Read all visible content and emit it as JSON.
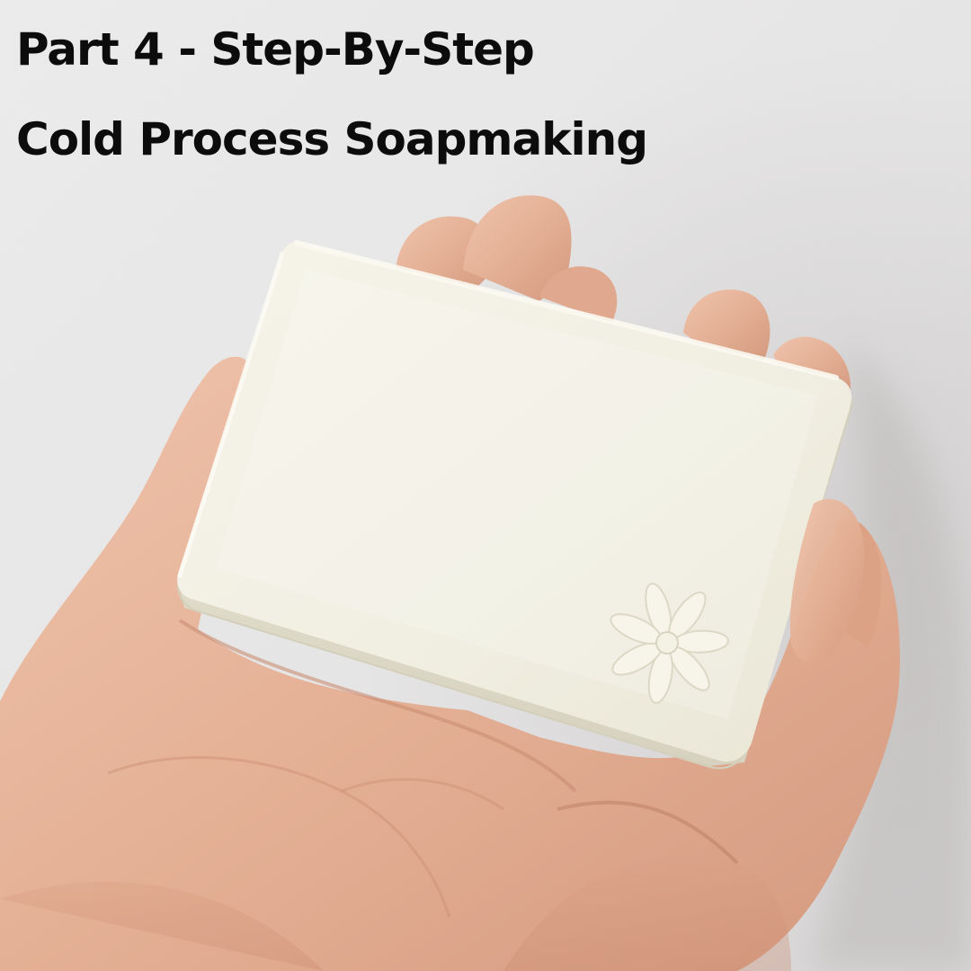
{
  "title": {
    "line1": "Part 4 - Step-By-Step",
    "line2": "Cold Process Soapmaking"
  },
  "colors": {
    "wall": "#e9e8e8",
    "skin": "#e7b59c",
    "soap": "#f3f1e4",
    "text": "#0c0c0c"
  },
  "photo": {
    "subject": "hand-holding-soap-bar",
    "stamp_icon": "flower-icon"
  }
}
